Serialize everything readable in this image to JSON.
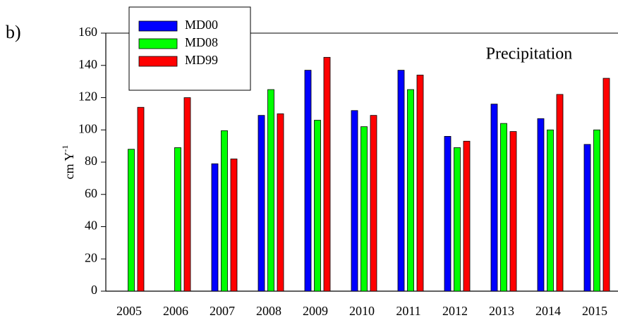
{
  "chart_data": {
    "type": "bar",
    "panel_label": "b)",
    "annotation": "Precipitation",
    "ylabel": "cm Y",
    "ylabel_superscript": "-1",
    "categories": [
      "2005",
      "2006",
      "2007",
      "2008",
      "2009",
      "2010",
      "2011",
      "2012",
      "2013",
      "2014",
      "2015"
    ],
    "series": [
      {
        "name": "MD00",
        "color": "#0000ff",
        "values": [
          null,
          null,
          79,
          109,
          137,
          112,
          137,
          96,
          116,
          107,
          91
        ]
      },
      {
        "name": "MD08",
        "color": "#00ff00",
        "values": [
          88,
          89,
          99.5,
          125,
          106,
          102,
          125,
          89,
          104,
          100,
          100
        ]
      },
      {
        "name": "MD99",
        "color": "#ff0000",
        "values": [
          114,
          120,
          82,
          110,
          145,
          109,
          134,
          93,
          99,
          122,
          132
        ]
      }
    ],
    "ylim": [
      0,
      160
    ],
    "yticks": [
      0,
      20,
      40,
      60,
      80,
      100,
      120,
      140,
      160
    ]
  }
}
